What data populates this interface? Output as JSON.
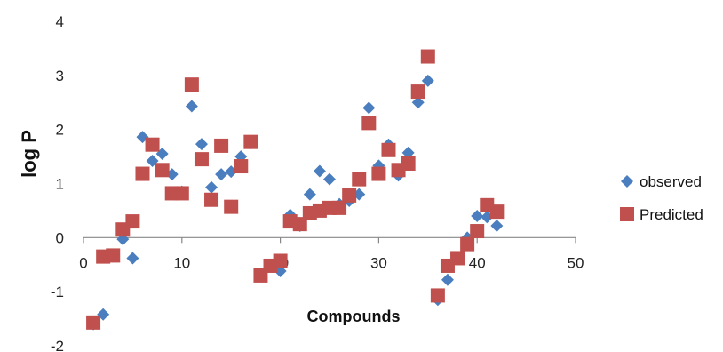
{
  "chart_data": {
    "type": "scatter",
    "title": "",
    "xlabel": "Compounds",
    "ylabel": "log P",
    "xlim": [
      0,
      50
    ],
    "ylim": [
      -2,
      4
    ],
    "xticks": [
      "0",
      "10",
      "20",
      "30",
      "40",
      "50"
    ],
    "yticks": [
      "-2",
      "-1",
      "0",
      "1",
      "2",
      "3",
      "4"
    ],
    "grid": false,
    "legend": "right",
    "series": [
      {
        "name": "observed",
        "marker": "diamond",
        "color": "#4a7ebf",
        "x": [
          1,
          2,
          3,
          4,
          5,
          6,
          7,
          8,
          9,
          10,
          11,
          12,
          13,
          14,
          15,
          16,
          17,
          18,
          19,
          20,
          21,
          22,
          23,
          24,
          25,
          26,
          27,
          28,
          29,
          30,
          31,
          32,
          33,
          34,
          35,
          36,
          37,
          38,
          39,
          40,
          41,
          42
        ],
        "y": [
          -1.6,
          -1.42,
          -0.35,
          -0.03,
          -0.38,
          1.86,
          1.42,
          1.55,
          1.17,
          0.85,
          2.43,
          1.73,
          0.93,
          1.17,
          1.22,
          1.5,
          1.75,
          -0.7,
          -0.5,
          -0.62,
          0.42,
          0.22,
          0.8,
          1.23,
          1.08,
          0.62,
          0.68,
          0.8,
          2.4,
          1.33,
          1.72,
          1.15,
          1.57,
          2.5,
          2.9,
          -1.15,
          -0.78,
          -0.38,
          0.0,
          0.4,
          0.38,
          0.22
        ]
      },
      {
        "name": "Predicted",
        "marker": "square",
        "color": "#c0504d",
        "x": [
          1,
          2,
          3,
          4,
          5,
          6,
          7,
          8,
          9,
          10,
          11,
          12,
          13,
          14,
          15,
          16,
          17,
          18,
          19,
          20,
          21,
          22,
          23,
          24,
          25,
          26,
          27,
          28,
          29,
          30,
          31,
          32,
          33,
          34,
          35,
          36,
          37,
          38,
          39,
          40,
          41,
          42
        ],
        "y": [
          -1.57,
          -0.35,
          -0.33,
          0.15,
          0.3,
          1.18,
          1.72,
          1.25,
          0.82,
          0.82,
          2.83,
          1.45,
          0.7,
          1.7,
          0.57,
          1.32,
          1.77,
          -0.7,
          -0.52,
          -0.43,
          0.3,
          0.25,
          0.45,
          0.5,
          0.55,
          0.55,
          0.78,
          1.08,
          2.12,
          1.18,
          1.62,
          1.25,
          1.37,
          2.7,
          3.35,
          -1.07,
          -0.52,
          -0.38,
          -0.12,
          0.12,
          0.6,
          0.48
        ]
      }
    ]
  }
}
